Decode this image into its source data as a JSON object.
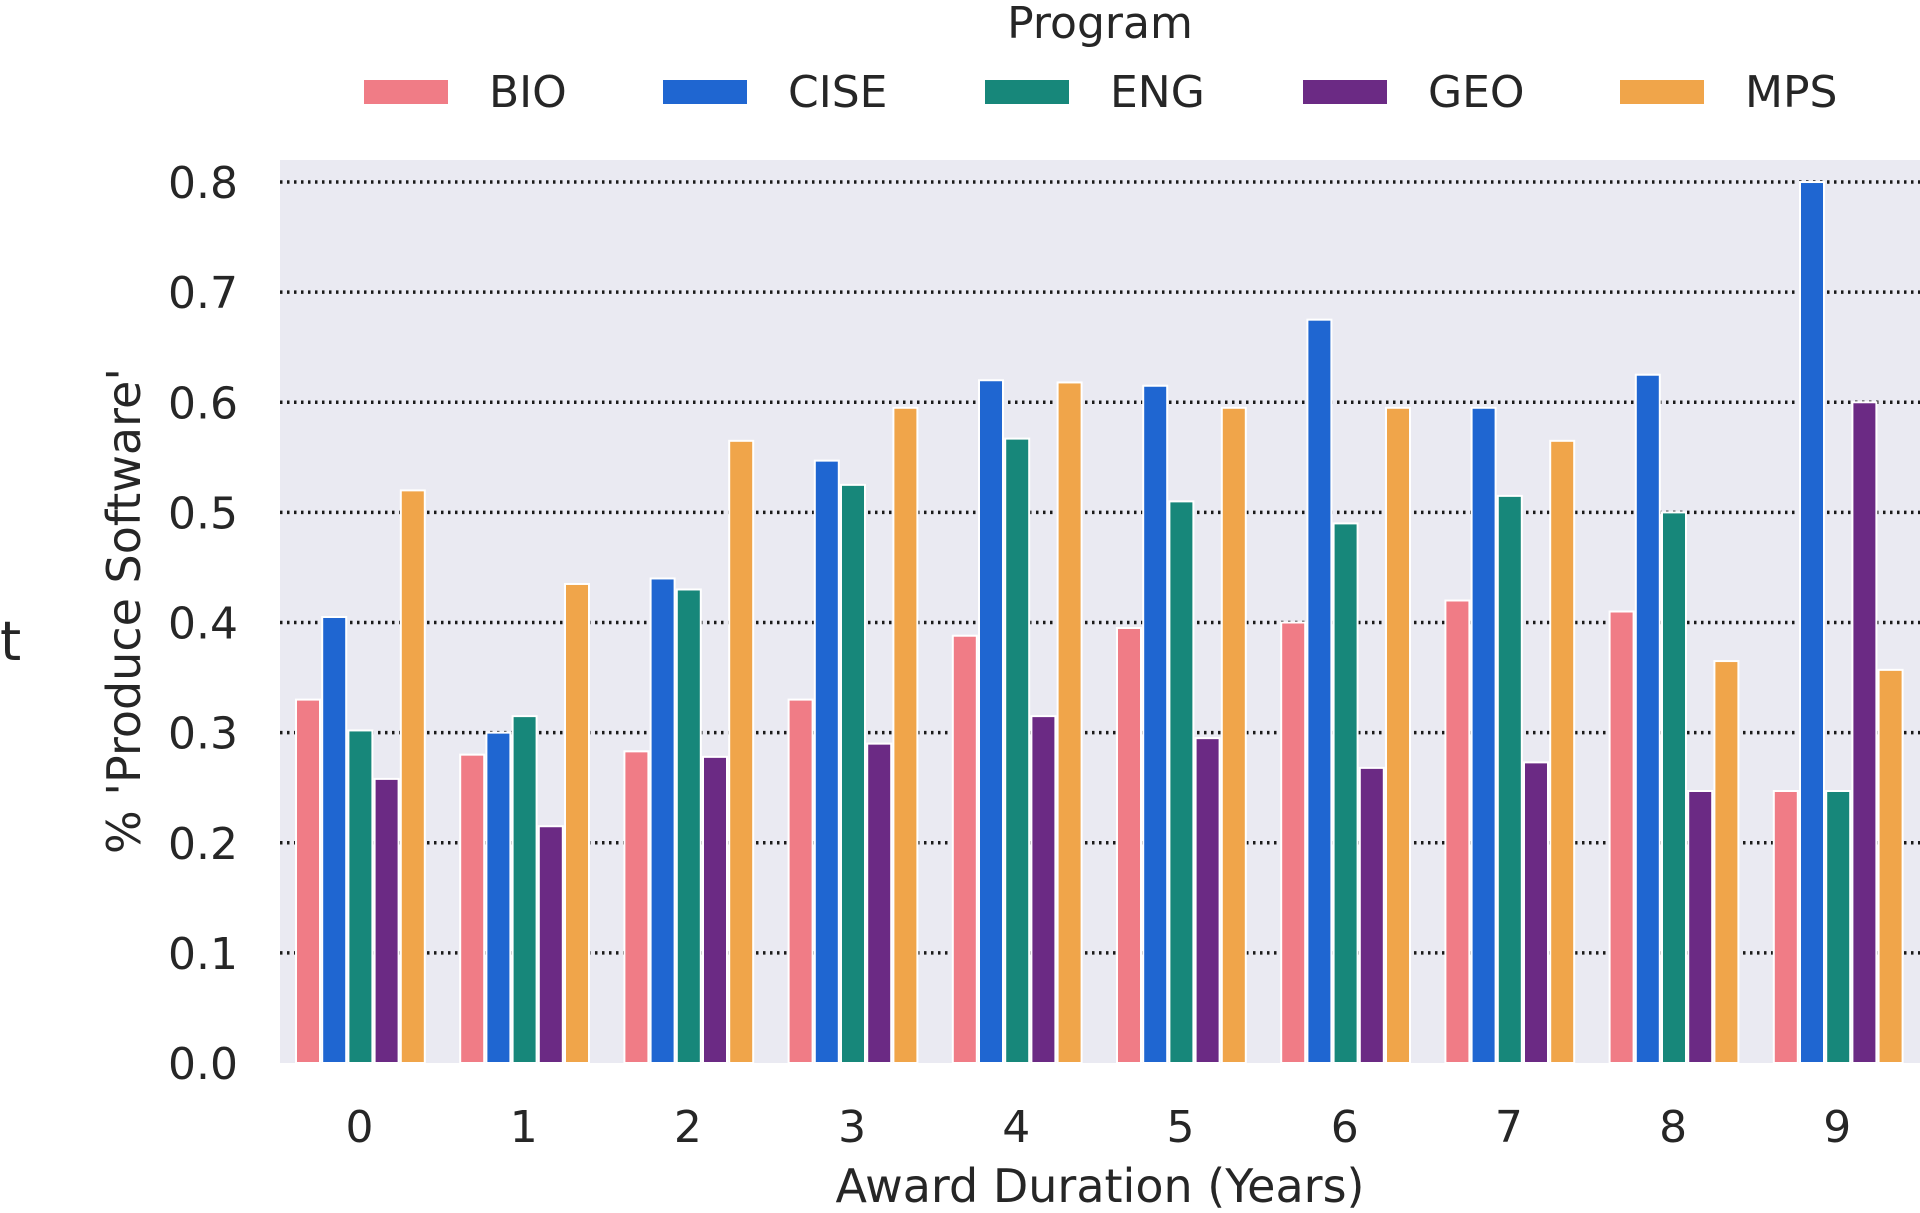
{
  "chart_data": {
    "type": "bar",
    "title": "",
    "xlabel": "Award Duration (Years)",
    "ylabel": "% 'Produce Software'",
    "ylim": [
      0,
      0.82
    ],
    "yticks": [
      "0.0",
      "0.1",
      "0.2",
      "0.3",
      "0.4",
      "0.5",
      "0.6",
      "0.7",
      "0.8"
    ],
    "categories": [
      "0",
      "1",
      "2",
      "3",
      "4",
      "5",
      "6",
      "7",
      "8",
      "9"
    ],
    "legend": {
      "title": "Program",
      "placement": "top-center"
    },
    "grid": true,
    "series": [
      {
        "name": "BIO",
        "color": "#f07c86",
        "values": [
          0.33,
          0.28,
          0.283,
          0.33,
          0.388,
          0.395,
          0.4,
          0.42,
          0.41,
          0.247
        ]
      },
      {
        "name": "CISE",
        "color": "#1f66d1",
        "values": [
          0.405,
          0.3,
          0.44,
          0.547,
          0.62,
          0.615,
          0.675,
          0.595,
          0.625,
          0.8
        ]
      },
      {
        "name": "ENG",
        "color": "#17877a",
        "values": [
          0.302,
          0.315,
          0.43,
          0.525,
          0.567,
          0.51,
          0.49,
          0.515,
          0.5,
          0.247
        ]
      },
      {
        "name": "GEO",
        "color": "#6b2a84",
        "values": [
          0.258,
          0.215,
          0.278,
          0.29,
          0.315,
          0.295,
          0.268,
          0.273,
          0.247,
          0.6
        ]
      },
      {
        "name": "MPS",
        "color": "#f0a54a",
        "values": [
          0.52,
          0.435,
          0.565,
          0.595,
          0.618,
          0.595,
          0.595,
          0.565,
          0.365,
          0.357
        ]
      }
    ]
  },
  "stray_text": "t"
}
